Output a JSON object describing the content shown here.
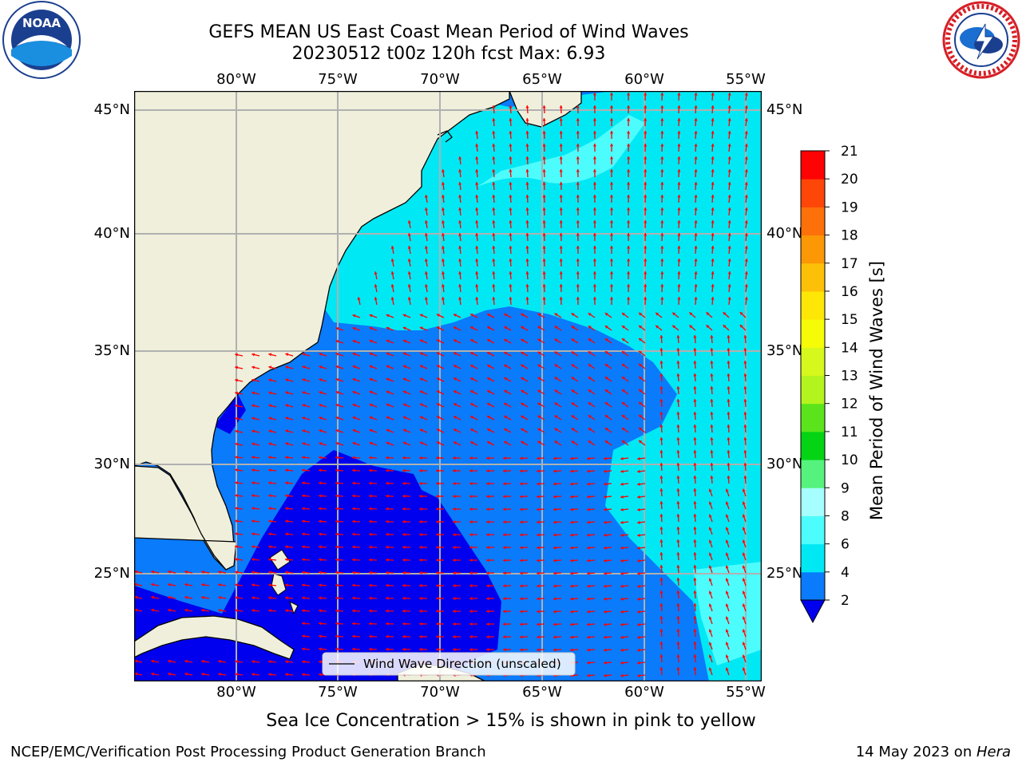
{
  "header": {
    "title_line1": "GEFS MEAN US East Coast Mean Period of Wind Waves",
    "title_line2": "20230512 t00z 120h fcst   Max: 6.93"
  },
  "logos": {
    "left": {
      "text": "NOAA",
      "ring_top": "NATIONAL OCEANIC AND ATMOSPHERIC ADMINISTRATION",
      "ring_bottom": "U.S. DEPARTMENT OF COMMERCE"
    },
    "right": {
      "ring": "NATIONAL WEATHER SERVICE"
    }
  },
  "map": {
    "lon_labels": [
      "80°W",
      "75°W",
      "70°W",
      "65°W",
      "60°W",
      "55°W"
    ],
    "lat_labels": [
      "45°N",
      "40°N",
      "35°N",
      "30°N",
      "25°N"
    ],
    "land_color": "#efefdc",
    "coast_color": "#000000",
    "grid_color": "#b0b0b0",
    "arrow_color": "#ff0000",
    "legend_label": "Wind Wave Direction (unscaled)",
    "regions": [
      "2-4 s (dark blue) south/southwest",
      "4-6 s (blue) central",
      "6-8 s (cyan) north and east"
    ]
  },
  "colorbar": {
    "label": "Mean Period of Wind Waves [s]",
    "ticks": [
      "2",
      "4",
      "6",
      "8",
      "9",
      "10",
      "11",
      "12",
      "13",
      "14",
      "15",
      "16",
      "17",
      "18",
      "19",
      "20",
      "21"
    ],
    "colors": [
      "#0a7bfb",
      "#00e8f4",
      "#4dfcfc",
      "#a6fefe",
      "#55f37d",
      "#04d414",
      "#5be41b",
      "#b4f41e",
      "#d7f81c",
      "#f6fc07",
      "#fee606",
      "#fdc008",
      "#fc9706",
      "#fe700a",
      "#fd4608",
      "#fd0303"
    ],
    "extend_color": "#0000ee"
  },
  "footer": {
    "note": "Sea Ice Concentration > 15% is shown in pink to yellow",
    "credit": "NCEP/EMC/Verification Post Processing Product Generation Branch",
    "date": "14 May 2023 on ",
    "host": "Hera"
  }
}
